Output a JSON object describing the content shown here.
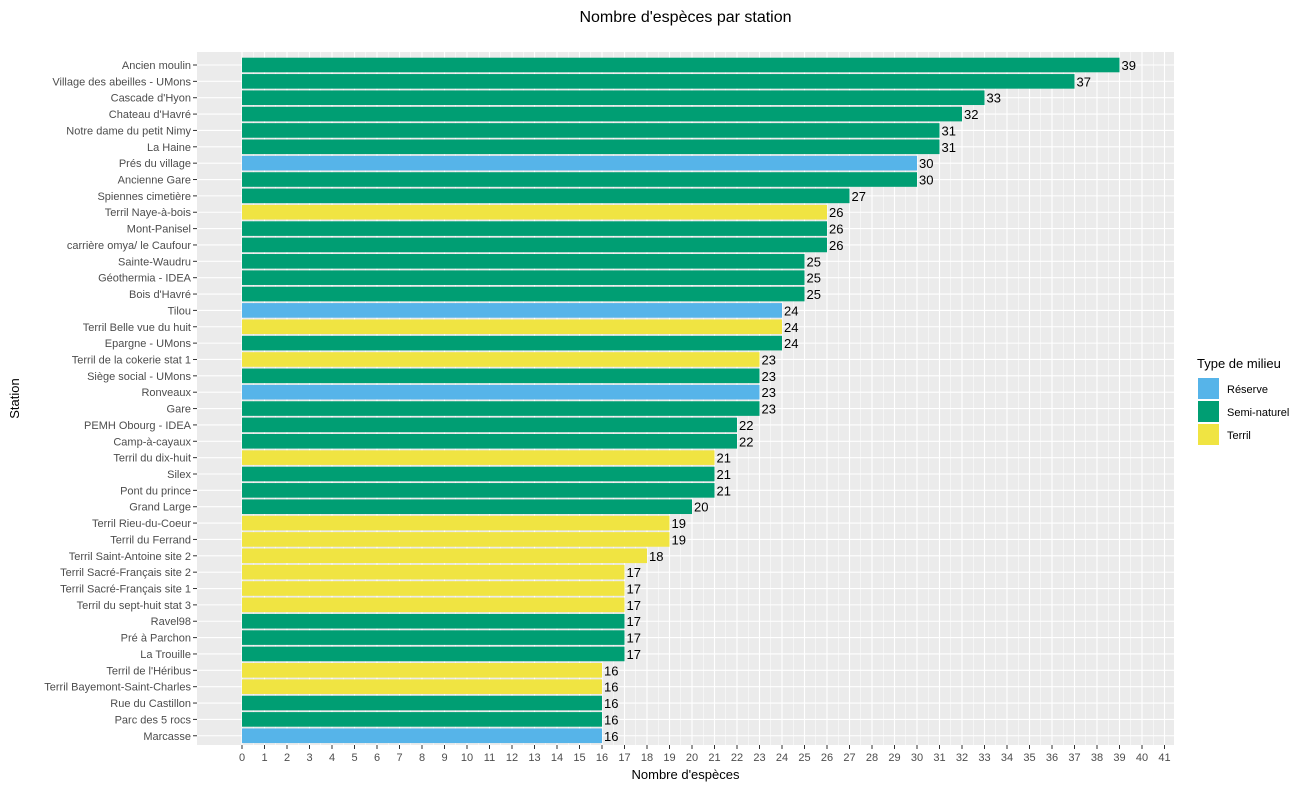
{
  "chart_data": {
    "type": "bar",
    "orientation": "horizontal",
    "title": "Nombre d'espèces par station",
    "xlabel": "Nombre d'espèces",
    "ylabel": "Station",
    "xlim": [
      0,
      41
    ],
    "grid": true,
    "legend": {
      "title": "Type de milieu",
      "position": "right",
      "entries": [
        {
          "name": "Réserve",
          "color": "#56B4E9"
        },
        {
          "name": "Semi-naturel",
          "color": "#009E73"
        },
        {
          "name": "Terril",
          "color": "#F0E442"
        }
      ]
    },
    "bars": [
      {
        "station": "Ancien moulin",
        "value": 39,
        "type": "Semi-naturel"
      },
      {
        "station": "Village des abeilles - UMons",
        "value": 37,
        "type": "Semi-naturel"
      },
      {
        "station": "Cascade d'Hyon",
        "value": 33,
        "type": "Semi-naturel"
      },
      {
        "station": "Chateau d'Havré",
        "value": 32,
        "type": "Semi-naturel"
      },
      {
        "station": "Notre dame du petit Nimy",
        "value": 31,
        "type": "Semi-naturel"
      },
      {
        "station": "La Haine",
        "value": 31,
        "type": "Semi-naturel"
      },
      {
        "station": "Prés du village",
        "value": 30,
        "type": "Réserve"
      },
      {
        "station": "Ancienne Gare",
        "value": 30,
        "type": "Semi-naturel"
      },
      {
        "station": "Spiennes cimetière",
        "value": 27,
        "type": "Semi-naturel"
      },
      {
        "station": "Terril Naye-à-bois",
        "value": 26,
        "type": "Terril"
      },
      {
        "station": "Mont-Panisel",
        "value": 26,
        "type": "Semi-naturel"
      },
      {
        "station": "carrière omya/ le Caufour",
        "value": 26,
        "type": "Semi-naturel"
      },
      {
        "station": "Sainte-Waudru",
        "value": 25,
        "type": "Semi-naturel"
      },
      {
        "station": "Géothermia - IDEA",
        "value": 25,
        "type": "Semi-naturel"
      },
      {
        "station": "Bois d'Havré",
        "value": 25,
        "type": "Semi-naturel"
      },
      {
        "station": "Tilou",
        "value": 24,
        "type": "Réserve"
      },
      {
        "station": "Terril Belle vue du huit",
        "value": 24,
        "type": "Terril"
      },
      {
        "station": "Epargne - UMons",
        "value": 24,
        "type": "Semi-naturel"
      },
      {
        "station": "Terril de la cokerie stat 1",
        "value": 23,
        "type": "Terril"
      },
      {
        "station": "Siège social - UMons",
        "value": 23,
        "type": "Semi-naturel"
      },
      {
        "station": "Ronveaux",
        "value": 23,
        "type": "Réserve"
      },
      {
        "station": "Gare",
        "value": 23,
        "type": "Semi-naturel"
      },
      {
        "station": "PEMH Obourg - IDEA",
        "value": 22,
        "type": "Semi-naturel"
      },
      {
        "station": "Camp-à-cayaux",
        "value": 22,
        "type": "Semi-naturel"
      },
      {
        "station": "Terril du dix-huit",
        "value": 21,
        "type": "Terril"
      },
      {
        "station": "Silex",
        "value": 21,
        "type": "Semi-naturel"
      },
      {
        "station": "Pont du prince",
        "value": 21,
        "type": "Semi-naturel"
      },
      {
        "station": "Grand Large",
        "value": 20,
        "type": "Semi-naturel"
      },
      {
        "station": "Terril Rieu-du-Coeur",
        "value": 19,
        "type": "Terril"
      },
      {
        "station": "Terril du Ferrand",
        "value": 19,
        "type": "Terril"
      },
      {
        "station": "Terril Saint-Antoine site 2",
        "value": 18,
        "type": "Terril"
      },
      {
        "station": "Terril Sacré-Français site 2",
        "value": 17,
        "type": "Terril"
      },
      {
        "station": "Terril Sacré-Français site 1",
        "value": 17,
        "type": "Terril"
      },
      {
        "station": "Terril du sept-huit stat 3",
        "value": 17,
        "type": "Terril"
      },
      {
        "station": "Ravel98",
        "value": 17,
        "type": "Semi-naturel"
      },
      {
        "station": "Pré à Parchon",
        "value": 17,
        "type": "Semi-naturel"
      },
      {
        "station": "La Trouille",
        "value": 17,
        "type": "Semi-naturel"
      },
      {
        "station": "Terril de l'Héribus",
        "value": 16,
        "type": "Terril"
      },
      {
        "station": "Terril Bayemont-Saint-Charles",
        "value": 16,
        "type": "Terril"
      },
      {
        "station": "Rue du Castillon",
        "value": 16,
        "type": "Semi-naturel"
      },
      {
        "station": "Parc des 5 rocs",
        "value": 16,
        "type": "Semi-naturel"
      },
      {
        "station": "Marcasse",
        "value": 16,
        "type": "Réserve"
      }
    ]
  }
}
